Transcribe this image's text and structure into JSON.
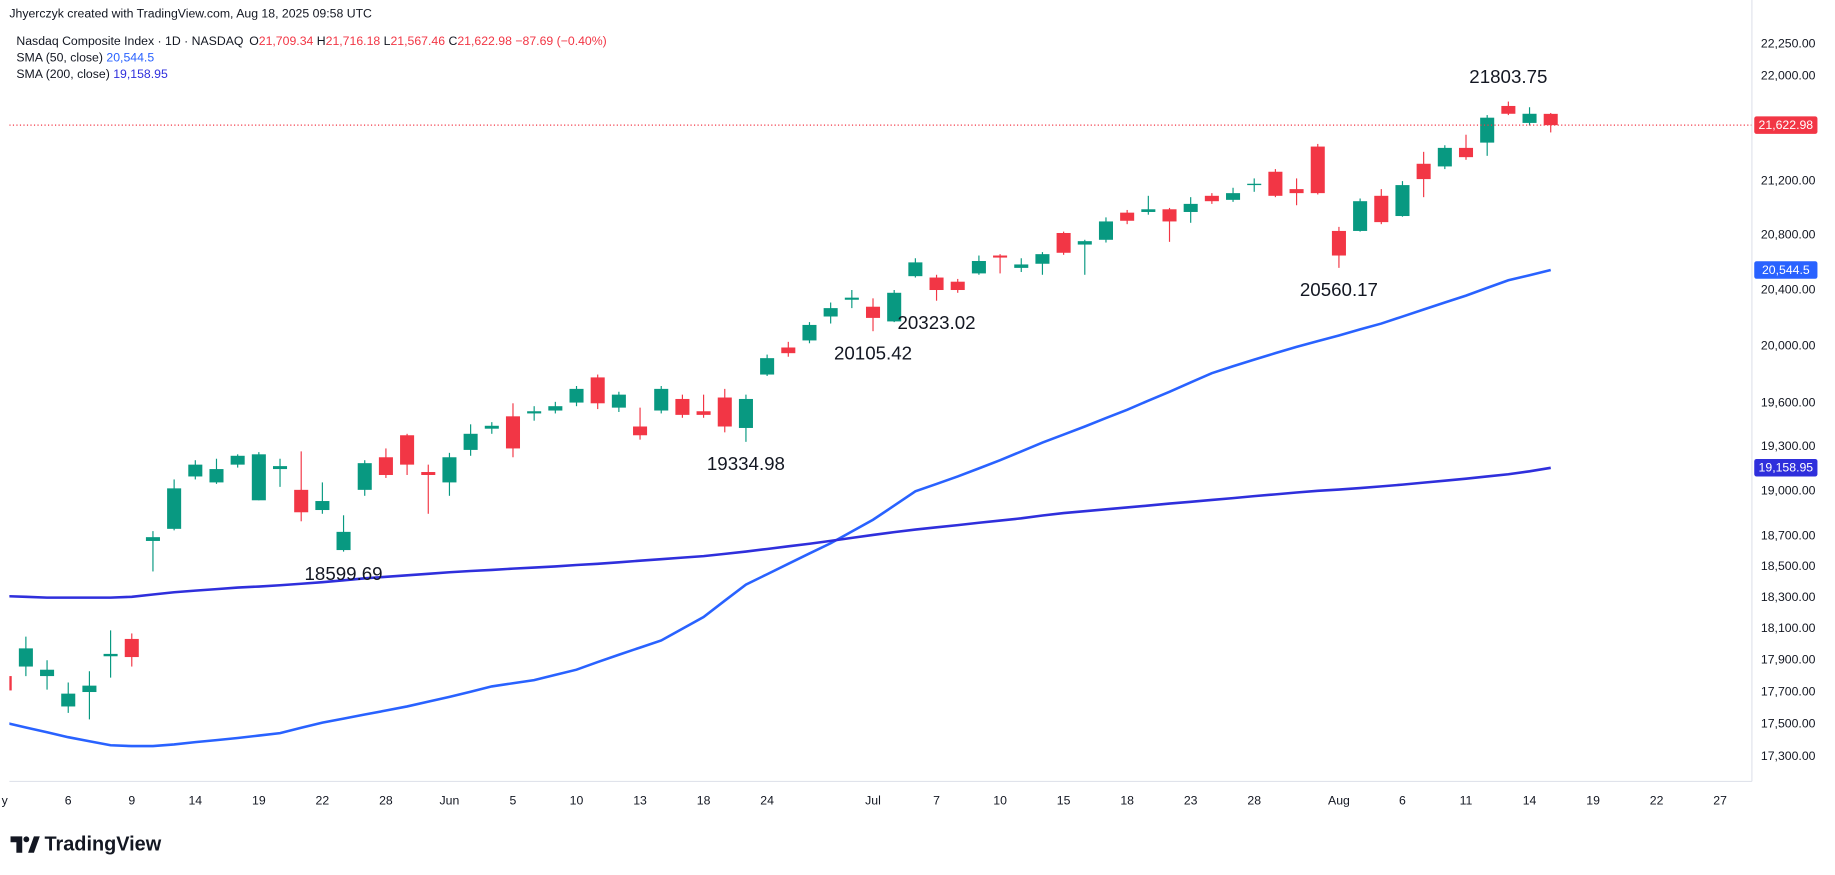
{
  "header": {
    "credit": "Jhyerczyk created with TradingView.com, Aug 18, 2025 09:58 UTC"
  },
  "footer": {
    "brand": "TradingView"
  },
  "chart_data": {
    "type": "candlestick",
    "legend": {
      "symbol": "Nasdaq Composite Index · 1D · NASDAQ",
      "open_label": "O",
      "open": "21,709.34",
      "high_label": "H",
      "high": "21,716.18",
      "low_label": "L",
      "low": "21,567.46",
      "close_label": "C",
      "close": "21,622.98",
      "change": "−87.69 (−0.40%)"
    },
    "up_color": "#089981",
    "down_color": "#f23645",
    "log_scale": true,
    "grid": false,
    "xlim": [
      0.22,
      82.5
    ],
    "ylim": [
      17150,
      22600
    ],
    "xticks": [
      {
        "value": 0,
        "label": "y"
      },
      {
        "value": 3,
        "label": "6"
      },
      {
        "value": 6,
        "label": "9"
      },
      {
        "value": 9,
        "label": "14"
      },
      {
        "value": 12,
        "label": "19"
      },
      {
        "value": 15,
        "label": "22"
      },
      {
        "value": 18,
        "label": "28"
      },
      {
        "value": 21,
        "label": "Jun"
      },
      {
        "value": 24,
        "label": "5"
      },
      {
        "value": 27,
        "label": "10"
      },
      {
        "value": 30,
        "label": "13"
      },
      {
        "value": 33,
        "label": "18"
      },
      {
        "value": 36,
        "label": "24"
      },
      {
        "value": 41,
        "label": "Jul"
      },
      {
        "value": 44,
        "label": "7"
      },
      {
        "value": 47,
        "label": "10"
      },
      {
        "value": 50,
        "label": "15"
      },
      {
        "value": 53,
        "label": "18"
      },
      {
        "value": 56,
        "label": "23"
      },
      {
        "value": 59,
        "label": "28"
      },
      {
        "value": 63,
        "label": "Aug"
      },
      {
        "value": 66,
        "label": "6"
      },
      {
        "value": 69,
        "label": "11"
      },
      {
        "value": 72,
        "label": "14"
      },
      {
        "value": 75,
        "label": "19"
      },
      {
        "value": 78,
        "label": "22"
      },
      {
        "value": 81,
        "label": "27"
      }
    ],
    "yticks": [
      {
        "value": 22250,
        "label": "22,250.00"
      },
      {
        "value": 22000,
        "label": "22,000.00"
      },
      {
        "value": 21200,
        "label": "21,200.00"
      },
      {
        "value": 20800,
        "label": "20,800.00"
      },
      {
        "value": 20400,
        "label": "20,400.00"
      },
      {
        "value": 20000,
        "label": "20,000.00"
      },
      {
        "value": 19600,
        "label": "19,600.00"
      },
      {
        "value": 19300,
        "label": "19,300.00"
      },
      {
        "value": 19000,
        "label": "19,000.00"
      },
      {
        "value": 18700,
        "label": "18,700.00"
      },
      {
        "value": 18500,
        "label": "18,500.00"
      },
      {
        "value": 18300,
        "label": "18,300.00"
      },
      {
        "value": 18100,
        "label": "18,100.00"
      },
      {
        "value": 17900,
        "label": "17,900.00"
      },
      {
        "value": 17700,
        "label": "17,700.00"
      },
      {
        "value": 17500,
        "label": "17,500.00"
      },
      {
        "value": 17300,
        "label": "17,300.00"
      }
    ],
    "open": [
      17800,
      17860,
      17800,
      17610,
      17700,
      17925,
      18035,
      18670,
      18750,
      19100,
      19060,
      19180,
      18940,
      19150,
      19010,
      18875,
      18610,
      19010,
      19230,
      19380,
      19130,
      19060,
      19280,
      19425,
      19510,
      19530,
      19550,
      19605,
      19780,
      19570,
      19440,
      19550,
      19630,
      19545,
      19640,
      19430,
      19800,
      19990,
      20040,
      20210,
      20330,
      20280,
      20175,
      20500,
      20490,
      20460,
      20520,
      20650,
      20560,
      20590,
      20815,
      20730,
      20765,
      20965,
      20970,
      20990,
      20970,
      21090,
      21060,
      21170,
      21270,
      21140,
      21460,
      20830,
      20830,
      21090,
      20940,
      21330,
      21310,
      21450,
      21490,
      21770,
      21640,
      21709.34
    ],
    "high": [
      17850,
      18050,
      17900,
      17760,
      17830,
      18090,
      18070,
      18735,
      19080,
      19210,
      19220,
      19250,
      19265,
      19220,
      19270,
      19060,
      18840,
      19210,
      19290,
      19390,
      19180,
      19260,
      19455,
      19470,
      19600,
      19580,
      19610,
      19720,
      19800,
      19680,
      19570,
      19720,
      19660,
      19660,
      19700,
      19660,
      19940,
      20030,
      20170,
      20310,
      20400,
      20340,
      20400,
      20630,
      20510,
      20480,
      20650,
      20660,
      20630,
      20675,
      20825,
      20765,
      20930,
      20985,
      21090,
      21000,
      21080,
      21110,
      21150,
      21220,
      21290,
      21220,
      21480,
      20860,
      21070,
      21140,
      21200,
      21420,
      21470,
      21550,
      21700,
      21803.75,
      21760,
      21716.18
    ],
    "low": [
      17690,
      17800,
      17715,
      17570,
      17530,
      17790,
      17860,
      18470,
      18740,
      19080,
      19050,
      19160,
      18940,
      19030,
      18800,
      18850,
      18599.69,
      18970,
      19090,
      19110,
      18850,
      18970,
      19240,
      19390,
      19230,
      19480,
      19530,
      19580,
      19560,
      19540,
      19350,
      19530,
      19500,
      19500,
      19400,
      19334.98,
      19790,
      19925,
      20020,
      20160,
      20270,
      20105.42,
      20170,
      20490,
      20323.02,
      20380,
      20510,
      20520,
      20530,
      20510,
      20655,
      20510,
      20745,
      20880,
      20950,
      20750,
      20890,
      21030,
      21045,
      21120,
      21080,
      21020,
      21100,
      20560.17,
      20825,
      20880,
      20935,
      21080,
      21290,
      21360,
      21390,
      21700,
      21620,
      21567.46
    ],
    "close": [
      17710,
      17975,
      17840,
      17690,
      17740,
      17940,
      17920,
      18695,
      19020,
      19180,
      19150,
      19240,
      19250,
      19170,
      18860,
      18935,
      18730,
      19190,
      19110,
      19180,
      19110,
      19230,
      19390,
      19445,
      19290,
      19545,
      19580,
      19700,
      19600,
      19660,
      19380,
      19700,
      19520,
      19520,
      19440,
      19630,
      19915,
      19950,
      20150,
      20270,
      20345,
      20200,
      20380,
      20600,
      20400,
      20400,
      20610,
      20635,
      20585,
      20660,
      20670,
      20755,
      20900,
      20905,
      20990,
      20900,
      21030,
      21050,
      21110,
      21180,
      21090,
      21110,
      21110,
      20650,
      21050,
      20895,
      21170,
      21215,
      21450,
      21380,
      21680,
      21710,
      21710,
      21622.98
    ],
    "last_label": "21,622.98",
    "annotations": [
      21803.75,
      20560.17,
      20323.02,
      20105.42,
      19334.98,
      18599.69
    ],
    "series": [
      {
        "name": "SMA (50, close)",
        "color": "#2962ff",
        "last_label": "20,544.5",
        "values": [
          17510,
          17480,
          17450,
          17420,
          17395,
          17370,
          17365,
          17365,
          17375,
          17390,
          17402,
          17415,
          17430,
          17445,
          17478,
          17510,
          17535,
          17560,
          17585,
          17610,
          17640,
          17670,
          17702,
          17735,
          17755,
          17775,
          17808,
          17840,
          17888,
          17935,
          17980,
          18025,
          18100,
          18175,
          18280,
          18385,
          18452,
          18520,
          18588,
          18655,
          18732,
          18810,
          18905,
          19000,
          19050,
          19100,
          19155,
          19210,
          19270,
          19330,
          19385,
          19440,
          19498,
          19555,
          19618,
          19680,
          19745,
          19810,
          19858,
          19905,
          19950,
          19995,
          20035,
          20075,
          20118,
          20160,
          20210,
          20260,
          20310,
          20360,
          20415,
          20470,
          20507,
          20544.5
        ]
      },
      {
        "name": "SMA (200, close)",
        "color": "#2f2fdc",
        "last_label": "19,158.95",
        "values": [
          18310,
          18305,
          18300,
          18300,
          18300,
          18300,
          18305,
          18320,
          18335,
          18345,
          18355,
          18365,
          18372,
          18380,
          18390,
          18400,
          18412,
          18425,
          18435,
          18445,
          18455,
          18465,
          18473,
          18480,
          18488,
          18495,
          18503,
          18512,
          18520,
          18530,
          18540,
          18550,
          18560,
          18570,
          18585,
          18600,
          18617,
          18635,
          18652,
          18670,
          18690,
          18710,
          18728,
          18745,
          18760,
          18775,
          18790,
          18805,
          18820,
          18838,
          18855,
          18867,
          18880,
          18892,
          18905,
          18918,
          18930,
          18942,
          18955,
          18968,
          18980,
          18992,
          19003,
          19012,
          19022,
          19033,
          19045,
          19058,
          19072,
          19085,
          19100,
          19115,
          19135,
          19158.95
        ]
      }
    ]
  }
}
